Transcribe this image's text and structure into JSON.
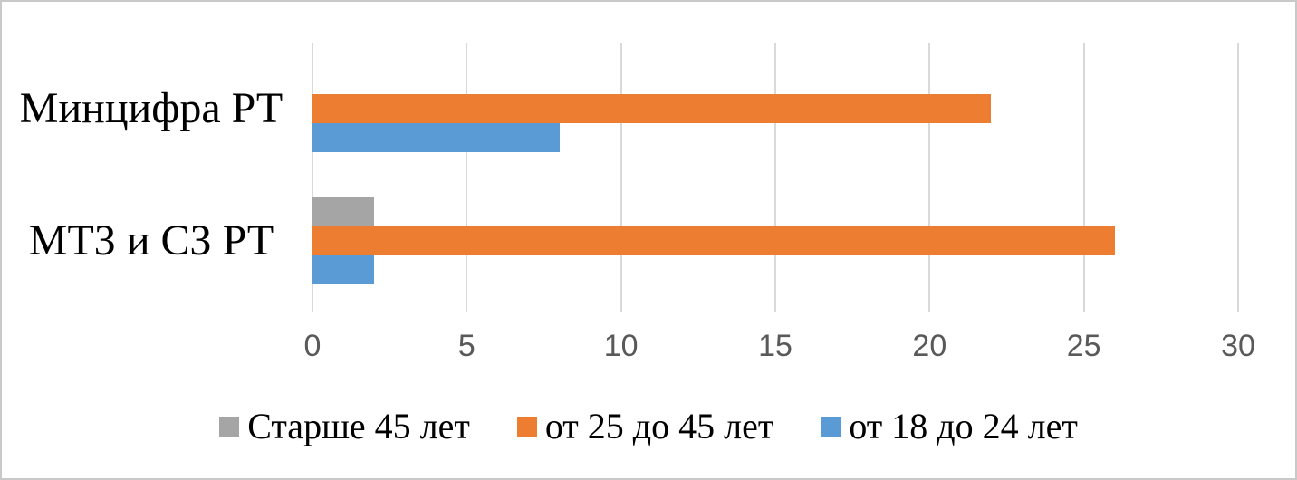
{
  "chart_data": {
    "type": "bar",
    "orientation": "horizontal",
    "title": "",
    "xlabel": "",
    "ylabel": "",
    "categories": [
      "Минцифра РТ",
      "МТЗ и СЗ РТ"
    ],
    "series": [
      {
        "name": "Старше 45 лет",
        "color": "#A5A5A5",
        "values": [
          0,
          2
        ]
      },
      {
        "name": "от 25 до 45 лет",
        "color": "#ED7D31",
        "values": [
          22,
          26
        ]
      },
      {
        "name": "от 18 до 24 лет",
        "color": "#5B9BD5",
        "values": [
          8,
          2
        ]
      }
    ],
    "x_ticks": [
      0,
      5,
      10,
      15,
      20,
      25,
      30
    ],
    "xlim": [
      0,
      30
    ],
    "grid": true,
    "legend_position": "bottom",
    "colors": {
      "gridline": "#D9D9D9",
      "tick_label": "#595959",
      "text": "#000000",
      "frame_border": "#C9C9C9",
      "background": "#FFFFFF"
    }
  }
}
